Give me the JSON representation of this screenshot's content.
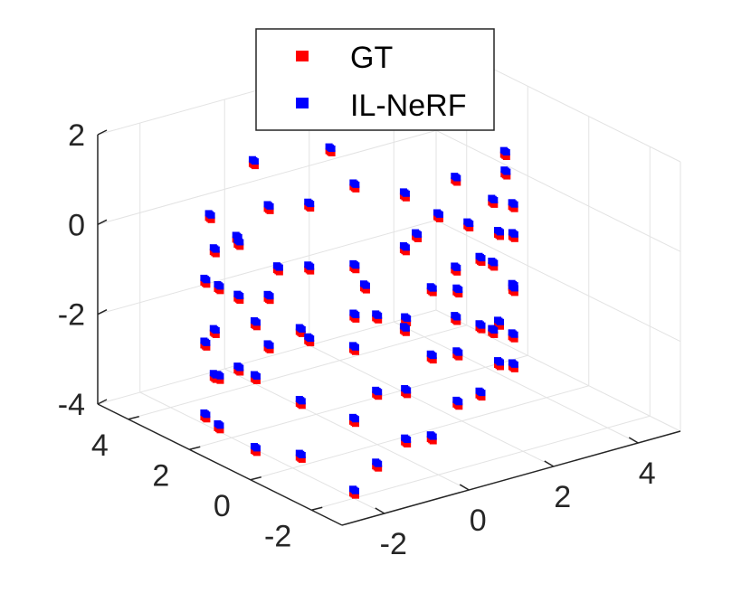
{
  "chart_data": {
    "type": "scatter",
    "projection": "3d",
    "title": "",
    "xlabel": "",
    "ylabel": "",
    "zlabel": "",
    "grid": true,
    "legend_position": "top-center",
    "xlim": [
      -3,
      5
    ],
    "ylim": [
      -3,
      5
    ],
    "zlim": [
      -4,
      2
    ],
    "x_ticks": [
      "-2",
      "0",
      "2",
      "4"
    ],
    "y_ticks": [
      "-2",
      "0",
      "2",
      "4"
    ],
    "z_ticks": [
      "-4",
      "-2",
      "0",
      "2"
    ],
    "legend": [
      {
        "label": "GT",
        "color": "#ff0000"
      },
      {
        "label": "IL-NeRF",
        "color": "#0000ff"
      }
    ],
    "series": [
      {
        "name": "GT",
        "color": "#ff0000",
        "marker": "square",
        "points": [
          [
            -2,
            -2,
            -3.9
          ],
          [
            -1.1,
            -1.5,
            -3.7
          ],
          [
            -0.2,
            -1.2,
            -3.5
          ],
          [
            0.7,
            -0.8,
            -3.8
          ],
          [
            1.6,
            -0.4,
            -3.4
          ],
          [
            2.5,
            0.1,
            -3.6
          ],
          [
            3.3,
            0.6,
            -3.3
          ],
          [
            4.0,
            1.1,
            -3.7
          ],
          [
            4.5,
            1.8,
            -3.4
          ],
          [
            4.6,
            2.6,
            -3.6
          ],
          [
            4.3,
            3.4,
            -3.5
          ],
          [
            3.6,
            4.1,
            -3.8
          ],
          [
            2.7,
            4.5,
            -3.4
          ],
          [
            1.7,
            4.6,
            -3.7
          ],
          [
            0.6,
            4.4,
            -3.5
          ],
          [
            -0.4,
            4.0,
            -3.6
          ],
          [
            -1.4,
            3.4,
            -3.3
          ],
          [
            -2.2,
            2.6,
            -3.7
          ],
          [
            -2.6,
            1.6,
            -3.5
          ],
          [
            -2.6,
            0.4,
            -3.6
          ],
          [
            -2.4,
            -0.8,
            -3.4
          ],
          [
            -2,
            -2,
            -2.3
          ],
          [
            -1.1,
            -1.5,
            -2.1
          ],
          [
            -0.2,
            -1.2,
            -2.4
          ],
          [
            0.7,
            -0.8,
            -2.0
          ],
          [
            1.6,
            -0.4,
            -2.3
          ],
          [
            2.5,
            0.1,
            -2.1
          ],
          [
            3.3,
            0.6,
            -2.4
          ],
          [
            4.0,
            1.1,
            -2.0
          ],
          [
            4.5,
            1.8,
            -2.3
          ],
          [
            4.6,
            2.6,
            -2.1
          ],
          [
            4.3,
            3.4,
            -2.4
          ],
          [
            3.6,
            4.1,
            -2.0
          ],
          [
            2.7,
            4.5,
            -2.3
          ],
          [
            1.7,
            4.6,
            -2.1
          ],
          [
            0.6,
            4.4,
            -2.4
          ],
          [
            -0.4,
            4.0,
            -2.0
          ],
          [
            -1.4,
            3.4,
            -2.3
          ],
          [
            -2.2,
            2.6,
            -2.1
          ],
          [
            -2.6,
            1.6,
            -2.4
          ],
          [
            -2.6,
            0.4,
            -2.0
          ],
          [
            -2.4,
            -0.8,
            -2.2
          ],
          [
            -2,
            -2,
            -0.7
          ],
          [
            -1.1,
            -1.5,
            -0.4
          ],
          [
            -0.2,
            -1.2,
            -0.8
          ],
          [
            0.7,
            -0.8,
            -0.5
          ],
          [
            1.6,
            -0.4,
            -0.9
          ],
          [
            2.5,
            0.1,
            -0.6
          ],
          [
            3.3,
            0.6,
            -0.4
          ],
          [
            4.0,
            1.1,
            -0.8
          ],
          [
            4.5,
            1.8,
            -0.5
          ],
          [
            4.6,
            2.6,
            -0.7
          ],
          [
            4.3,
            3.4,
            -0.4
          ],
          [
            3.6,
            4.1,
            -0.8
          ],
          [
            2.7,
            4.5,
            -0.5
          ],
          [
            1.7,
            4.6,
            -0.7
          ],
          [
            0.6,
            4.4,
            -0.4
          ],
          [
            -0.4,
            4.0,
            -0.8
          ],
          [
            -1.4,
            3.4,
            -0.5
          ],
          [
            -2.2,
            2.6,
            -0.7
          ],
          [
            -2.6,
            1.6,
            -0.4
          ],
          [
            -2.6,
            0.4,
            -0.8
          ],
          [
            -2.4,
            -0.8,
            -0.6
          ],
          [
            -1.6,
            -1.8,
            0.5
          ],
          [
            0.2,
            -1.0,
            0.9
          ],
          [
            2.0,
            -0.2,
            0.4
          ],
          [
            3.6,
            0.8,
            0.8
          ],
          [
            4.6,
            2.2,
            0.5
          ],
          [
            4.0,
            3.8,
            0.9
          ],
          [
            2.2,
            4.6,
            0.4
          ],
          [
            0.1,
            4.2,
            0.8
          ],
          [
            -1.8,
            3.0,
            0.5
          ],
          [
            -2.6,
            1.0,
            0.9
          ],
          [
            -2.5,
            -0.2,
            0.6
          ],
          [
            1.0,
            -0.6,
            1.0
          ]
        ]
      },
      {
        "name": "IL-NeRF",
        "color": "#0000ff",
        "marker": "square",
        "points": [
          [
            -2,
            -2,
            -3.8
          ],
          [
            -1.1,
            -1.5,
            -3.6
          ],
          [
            -0.2,
            -1.2,
            -3.4
          ],
          [
            0.7,
            -0.8,
            -3.7
          ],
          [
            1.6,
            -0.4,
            -3.3
          ],
          [
            2.5,
            0.1,
            -3.5
          ],
          [
            3.3,
            0.6,
            -3.2
          ],
          [
            4.0,
            1.1,
            -3.6
          ],
          [
            4.5,
            1.8,
            -3.3
          ],
          [
            4.6,
            2.6,
            -3.5
          ],
          [
            4.3,
            3.4,
            -3.4
          ],
          [
            3.6,
            4.1,
            -3.7
          ],
          [
            2.7,
            4.5,
            -3.3
          ],
          [
            1.7,
            4.6,
            -3.6
          ],
          [
            0.6,
            4.4,
            -3.4
          ],
          [
            -0.4,
            4.0,
            -3.5
          ],
          [
            -1.4,
            3.4,
            -3.2
          ],
          [
            -2.2,
            2.6,
            -3.6
          ],
          [
            -2.6,
            1.6,
            -3.4
          ],
          [
            -2.6,
            0.4,
            -3.5
          ],
          [
            -2.4,
            -0.8,
            -3.3
          ],
          [
            -2,
            -2,
            -2.2
          ],
          [
            -1.1,
            -1.5,
            -2.0
          ],
          [
            -0.2,
            -1.2,
            -2.3
          ],
          [
            0.7,
            -0.8,
            -1.9
          ],
          [
            1.6,
            -0.4,
            -2.2
          ],
          [
            2.5,
            0.1,
            -2.0
          ],
          [
            3.3,
            0.6,
            -2.3
          ],
          [
            4.0,
            1.1,
            -1.9
          ],
          [
            4.5,
            1.8,
            -2.2
          ],
          [
            4.6,
            2.6,
            -2.0
          ],
          [
            4.3,
            3.4,
            -2.3
          ],
          [
            3.6,
            4.1,
            -1.9
          ],
          [
            2.7,
            4.5,
            -2.2
          ],
          [
            1.7,
            4.6,
            -2.0
          ],
          [
            0.6,
            4.4,
            -2.3
          ],
          [
            -0.4,
            4.0,
            -1.9
          ],
          [
            -1.4,
            3.4,
            -2.2
          ],
          [
            -2.2,
            2.6,
            -2.0
          ],
          [
            -2.6,
            1.6,
            -2.3
          ],
          [
            -2.6,
            0.4,
            -1.9
          ],
          [
            -2.4,
            -0.8,
            -2.1
          ],
          [
            -2,
            -2,
            -0.6
          ],
          [
            -1.1,
            -1.5,
            -0.3
          ],
          [
            -0.2,
            -1.2,
            -0.7
          ],
          [
            0.7,
            -0.8,
            -0.4
          ],
          [
            1.6,
            -0.4,
            -0.8
          ],
          [
            2.5,
            0.1,
            -0.5
          ],
          [
            3.3,
            0.6,
            -0.3
          ],
          [
            4.0,
            1.1,
            -0.7
          ],
          [
            4.5,
            1.8,
            -0.4
          ],
          [
            4.6,
            2.6,
            -0.6
          ],
          [
            4.3,
            3.4,
            -0.3
          ],
          [
            3.6,
            4.1,
            -0.7
          ],
          [
            2.7,
            4.5,
            -0.4
          ],
          [
            1.7,
            4.6,
            -0.6
          ],
          [
            0.6,
            4.4,
            -0.3
          ],
          [
            -0.4,
            4.0,
            -0.7
          ],
          [
            -1.4,
            3.4,
            -0.4
          ],
          [
            -2.2,
            2.6,
            -0.6
          ],
          [
            -2.6,
            1.6,
            -0.3
          ],
          [
            -2.6,
            0.4,
            -0.7
          ],
          [
            -2.4,
            -0.8,
            -0.5
          ],
          [
            -1.6,
            -1.8,
            0.6
          ],
          [
            0.2,
            -1.0,
            1.0
          ],
          [
            2.0,
            -0.2,
            0.5
          ],
          [
            3.6,
            0.8,
            0.9
          ],
          [
            4.6,
            2.2,
            0.6
          ],
          [
            4.0,
            3.8,
            1.0
          ],
          [
            2.2,
            4.6,
            0.5
          ],
          [
            0.1,
            4.2,
            0.9
          ],
          [
            -1.8,
            3.0,
            0.6
          ],
          [
            -2.6,
            1.0,
            1.0
          ],
          [
            -2.5,
            -0.2,
            0.7
          ],
          [
            1.0,
            -0.6,
            1.1
          ]
        ]
      }
    ]
  }
}
